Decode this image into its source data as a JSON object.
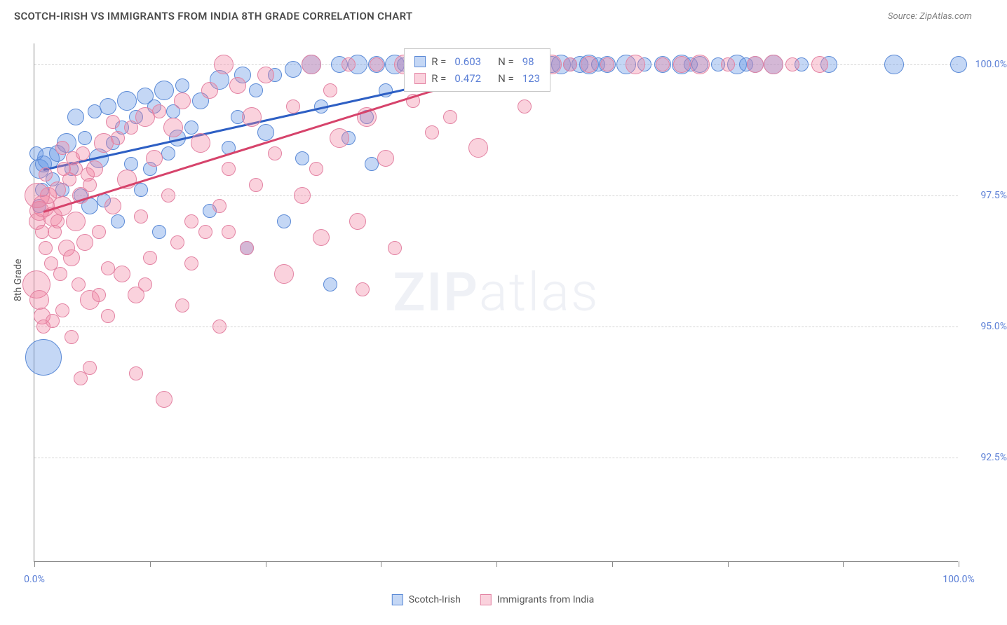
{
  "title": "SCOTCH-IRISH VS IMMIGRANTS FROM INDIA 8TH GRADE CORRELATION CHART",
  "source": "Source: ZipAtlas.com",
  "ylabel": "8th Grade",
  "watermark_bold": "ZIP",
  "watermark_light": "atlas",
  "chart": {
    "type": "scatter",
    "xlim": [
      0,
      100
    ],
    "ylim": [
      90.5,
      100.4
    ],
    "xticks": [
      0,
      12.5,
      25,
      37.5,
      50,
      62.5,
      75,
      87.5,
      100
    ],
    "xtick_labels": {
      "0": "0.0%",
      "100": "100.0%"
    },
    "yticks": [
      92.5,
      95.0,
      97.5,
      100.0
    ],
    "ytick_labels": [
      "92.5%",
      "95.0%",
      "97.5%",
      "100.0%"
    ],
    "background_color": "#ffffff",
    "grid_color": "#d5d5d5"
  },
  "series": [
    {
      "name": "Scotch-Irish",
      "color_fill": "rgba(100, 150, 230, 0.38)",
      "color_stroke": "#5b8ad6",
      "trend_color": "#2d5fc4",
      "R": "0.603",
      "N": "98",
      "trend": {
        "x1": 1,
        "y1": 98.0,
        "x2": 52,
        "y2": 100.0
      },
      "points": [
        [
          0.5,
          98.0,
          14
        ],
        [
          1,
          98.1,
          12
        ],
        [
          1.5,
          98.2,
          16
        ],
        [
          2,
          97.8,
          10
        ],
        [
          2.5,
          98.3,
          12
        ],
        [
          3,
          97.6,
          10
        ],
        [
          3.5,
          98.5,
          14
        ],
        [
          4,
          98.0,
          10
        ],
        [
          4.5,
          99.0,
          12
        ],
        [
          5,
          97.5,
          10
        ],
        [
          5.5,
          98.6,
          10
        ],
        [
          6,
          97.3,
          12
        ],
        [
          6.5,
          99.1,
          10
        ],
        [
          7,
          98.2,
          14
        ],
        [
          7.5,
          97.4,
          10
        ],
        [
          8,
          99.2,
          12
        ],
        [
          8.5,
          98.5,
          10
        ],
        [
          9,
          97.0,
          10
        ],
        [
          9.5,
          98.8,
          10
        ],
        [
          10,
          99.3,
          14
        ],
        [
          10.5,
          98.1,
          10
        ],
        [
          11,
          99.0,
          10
        ],
        [
          11.5,
          97.6,
          10
        ],
        [
          12,
          99.4,
          12
        ],
        [
          12.5,
          98.0,
          10
        ],
        [
          13,
          99.2,
          10
        ],
        [
          13.5,
          96.8,
          10
        ],
        [
          14,
          99.5,
          14
        ],
        [
          14.5,
          98.3,
          10
        ],
        [
          15,
          99.1,
          10
        ],
        [
          15.5,
          98.6,
          12
        ],
        [
          16,
          99.6,
          10
        ],
        [
          17,
          98.8,
          10
        ],
        [
          18,
          99.3,
          12
        ],
        [
          19,
          97.2,
          10
        ],
        [
          20,
          99.7,
          14
        ],
        [
          21,
          98.4,
          10
        ],
        [
          22,
          99.0,
          10
        ],
        [
          22.5,
          99.8,
          12
        ],
        [
          23,
          96.5,
          10
        ],
        [
          24,
          99.5,
          10
        ],
        [
          25,
          98.7,
          12
        ],
        [
          26,
          99.8,
          10
        ],
        [
          27,
          97.0,
          10
        ],
        [
          28,
          99.9,
          12
        ],
        [
          29,
          98.2,
          10
        ],
        [
          30,
          100.0,
          14
        ],
        [
          31,
          99.2,
          10
        ],
        [
          32,
          95.8,
          10
        ],
        [
          33,
          100.0,
          12
        ],
        [
          34,
          98.6,
          10
        ],
        [
          35,
          100.0,
          14
        ],
        [
          36,
          99.0,
          10
        ],
        [
          36.5,
          98.1,
          10
        ],
        [
          37,
          100.0,
          12
        ],
        [
          38,
          99.5,
          10
        ],
        [
          39,
          100.0,
          14
        ],
        [
          40,
          100.0,
          10
        ],
        [
          41,
          100.0,
          12
        ],
        [
          42,
          99.8,
          10
        ],
        [
          43,
          100.0,
          14
        ],
        [
          44,
          100.0,
          10
        ],
        [
          45,
          100.0,
          12
        ],
        [
          46,
          100.0,
          14
        ],
        [
          47,
          100.0,
          10
        ],
        [
          48,
          100.0,
          12
        ],
        [
          50,
          100.0,
          14
        ],
        [
          52,
          100.0,
          12
        ],
        [
          53,
          100.0,
          10
        ],
        [
          54,
          100.0,
          14
        ],
        [
          55,
          100.0,
          10
        ],
        [
          56,
          100.0,
          12
        ],
        [
          57,
          100.0,
          14
        ],
        [
          58,
          100.0,
          10
        ],
        [
          59,
          100.0,
          12
        ],
        [
          60,
          100.0,
          14
        ],
        [
          61,
          100.0,
          10
        ],
        [
          62,
          100.0,
          12
        ],
        [
          64,
          100.0,
          14
        ],
        [
          66,
          100.0,
          10
        ],
        [
          68,
          100.0,
          12
        ],
        [
          70,
          100.0,
          14
        ],
        [
          71,
          100.0,
          10
        ],
        [
          72,
          100.0,
          12
        ],
        [
          74,
          100.0,
          10
        ],
        [
          76,
          100.0,
          14
        ],
        [
          77,
          100.0,
          10
        ],
        [
          78,
          100.0,
          12
        ],
        [
          80,
          100.0,
          14
        ],
        [
          83,
          100.0,
          10
        ],
        [
          86,
          100.0,
          12
        ],
        [
          93,
          100.0,
          14
        ],
        [
          100,
          100.0,
          12
        ],
        [
          1,
          94.4,
          26
        ],
        [
          0.5,
          97.3,
          10
        ],
        [
          0.8,
          97.6,
          10
        ],
        [
          0.2,
          98.3,
          10
        ]
      ]
    },
    {
      "name": "Immigrants from India",
      "color_fill": "rgba(240, 130, 160, 0.36)",
      "color_stroke": "#e383a3",
      "trend_color": "#d6436b",
      "R": "0.472",
      "N": "123",
      "trend": {
        "x1": 1,
        "y1": 97.2,
        "x2": 52,
        "y2": 100.0
      },
      "points": [
        [
          0.3,
          97.0,
          12
        ],
        [
          0.5,
          97.2,
          14
        ],
        [
          0.8,
          96.8,
          10
        ],
        [
          1,
          97.3,
          16
        ],
        [
          1.2,
          96.5,
          10
        ],
        [
          1.5,
          97.5,
          12
        ],
        [
          1.8,
          96.2,
          10
        ],
        [
          2,
          97.1,
          14
        ],
        [
          2.2,
          96.8,
          10
        ],
        [
          2.5,
          97.6,
          12
        ],
        [
          2.8,
          96.0,
          10
        ],
        [
          3,
          97.3,
          14
        ],
        [
          3.2,
          98.0,
          10
        ],
        [
          3.5,
          96.5,
          12
        ],
        [
          3.8,
          97.8,
          10
        ],
        [
          4,
          96.3,
          12
        ],
        [
          4.2,
          98.2,
          10
        ],
        [
          4.5,
          97.0,
          14
        ],
        [
          4.8,
          95.8,
          10
        ],
        [
          5,
          97.5,
          12
        ],
        [
          5.2,
          98.3,
          10
        ],
        [
          5.5,
          96.6,
          12
        ],
        [
          5.8,
          97.9,
          10
        ],
        [
          6,
          95.5,
          14
        ],
        [
          6.5,
          98.0,
          12
        ],
        [
          7,
          96.8,
          10
        ],
        [
          7.5,
          98.5,
          14
        ],
        [
          8,
          95.2,
          10
        ],
        [
          8.5,
          97.3,
          12
        ],
        [
          9,
          98.6,
          10
        ],
        [
          9.5,
          96.0,
          12
        ],
        [
          10,
          97.8,
          14
        ],
        [
          10.5,
          98.8,
          10
        ],
        [
          11,
          95.6,
          12
        ],
        [
          11.5,
          97.1,
          10
        ],
        [
          12,
          99.0,
          14
        ],
        [
          12.5,
          96.3,
          10
        ],
        [
          13,
          98.2,
          12
        ],
        [
          13.5,
          99.1,
          10
        ],
        [
          14,
          93.6,
          12
        ],
        [
          14.5,
          97.5,
          10
        ],
        [
          15,
          98.8,
          14
        ],
        [
          15.5,
          96.6,
          10
        ],
        [
          16,
          99.3,
          12
        ],
        [
          17,
          97.0,
          10
        ],
        [
          18,
          98.5,
          14
        ],
        [
          18.5,
          96.8,
          10
        ],
        [
          19,
          99.5,
          12
        ],
        [
          20,
          97.3,
          10
        ],
        [
          20.5,
          100.0,
          14
        ],
        [
          21,
          98.0,
          10
        ],
        [
          22,
          99.6,
          12
        ],
        [
          23,
          96.5,
          10
        ],
        [
          23.5,
          99.0,
          14
        ],
        [
          24,
          97.7,
          10
        ],
        [
          25,
          99.8,
          12
        ],
        [
          26,
          98.3,
          10
        ],
        [
          27,
          96.0,
          14
        ],
        [
          28,
          99.2,
          10
        ],
        [
          29,
          97.5,
          12
        ],
        [
          30,
          100.0,
          14
        ],
        [
          30.5,
          98.0,
          10
        ],
        [
          31,
          96.7,
          12
        ],
        [
          32,
          99.5,
          10
        ],
        [
          33,
          98.6,
          14
        ],
        [
          34,
          100.0,
          10
        ],
        [
          35,
          97.0,
          12
        ],
        [
          35.5,
          95.7,
          10
        ],
        [
          36,
          99.0,
          14
        ],
        [
          37,
          100.0,
          10
        ],
        [
          38,
          98.2,
          12
        ],
        [
          39,
          96.5,
          10
        ],
        [
          40,
          100.0,
          14
        ],
        [
          41,
          99.3,
          10
        ],
        [
          42,
          100.0,
          12
        ],
        [
          43,
          98.7,
          10
        ],
        [
          44,
          100.0,
          14
        ],
        [
          45,
          99.0,
          10
        ],
        [
          46,
          100.0,
          12
        ],
        [
          47,
          100.0,
          10
        ],
        [
          48,
          98.4,
          14
        ],
        [
          49,
          100.0,
          10
        ],
        [
          50,
          100.0,
          12
        ],
        [
          52,
          100.0,
          14
        ],
        [
          53,
          99.2,
          10
        ],
        [
          54,
          100.0,
          12
        ],
        [
          56,
          100.0,
          14
        ],
        [
          58,
          100.0,
          10
        ],
        [
          60,
          100.0,
          12
        ],
        [
          62,
          100.0,
          10
        ],
        [
          65,
          100.0,
          14
        ],
        [
          68,
          100.0,
          10
        ],
        [
          70,
          100.0,
          12
        ],
        [
          72,
          100.0,
          14
        ],
        [
          75,
          100.0,
          10
        ],
        [
          78,
          100.0,
          12
        ],
        [
          80,
          100.0,
          14
        ],
        [
          82,
          100.0,
          10
        ],
        [
          85,
          100.0,
          12
        ],
        [
          0.2,
          95.8,
          20
        ],
        [
          0.5,
          95.5,
          14
        ],
        [
          0.3,
          97.5,
          18
        ],
        [
          0.8,
          95.2,
          12
        ],
        [
          1.0,
          95.0,
          10
        ],
        [
          2,
          95.1,
          10
        ],
        [
          3,
          95.3,
          10
        ],
        [
          4,
          94.8,
          10
        ],
        [
          5,
          94.0,
          10
        ],
        [
          6,
          94.2,
          10
        ],
        [
          7,
          95.6,
          10
        ],
        [
          8,
          96.1,
          10
        ],
        [
          11,
          94.1,
          10
        ],
        [
          12,
          95.8,
          10
        ],
        [
          16,
          95.4,
          10
        ],
        [
          17,
          96.2,
          10
        ],
        [
          20,
          95.0,
          10
        ],
        [
          21,
          96.8,
          10
        ],
        [
          2.5,
          97.0,
          10
        ],
        [
          1.2,
          97.9,
          10
        ],
        [
          3.0,
          98.4,
          10
        ],
        [
          4.5,
          98.0,
          10
        ],
        [
          6,
          97.7,
          10
        ],
        [
          8.5,
          98.9,
          10
        ]
      ]
    }
  ],
  "legend": {
    "series1_label": "Scotch-Irish",
    "series2_label": "Immigrants from India",
    "r_label": "R =",
    "n_label": "N ="
  }
}
